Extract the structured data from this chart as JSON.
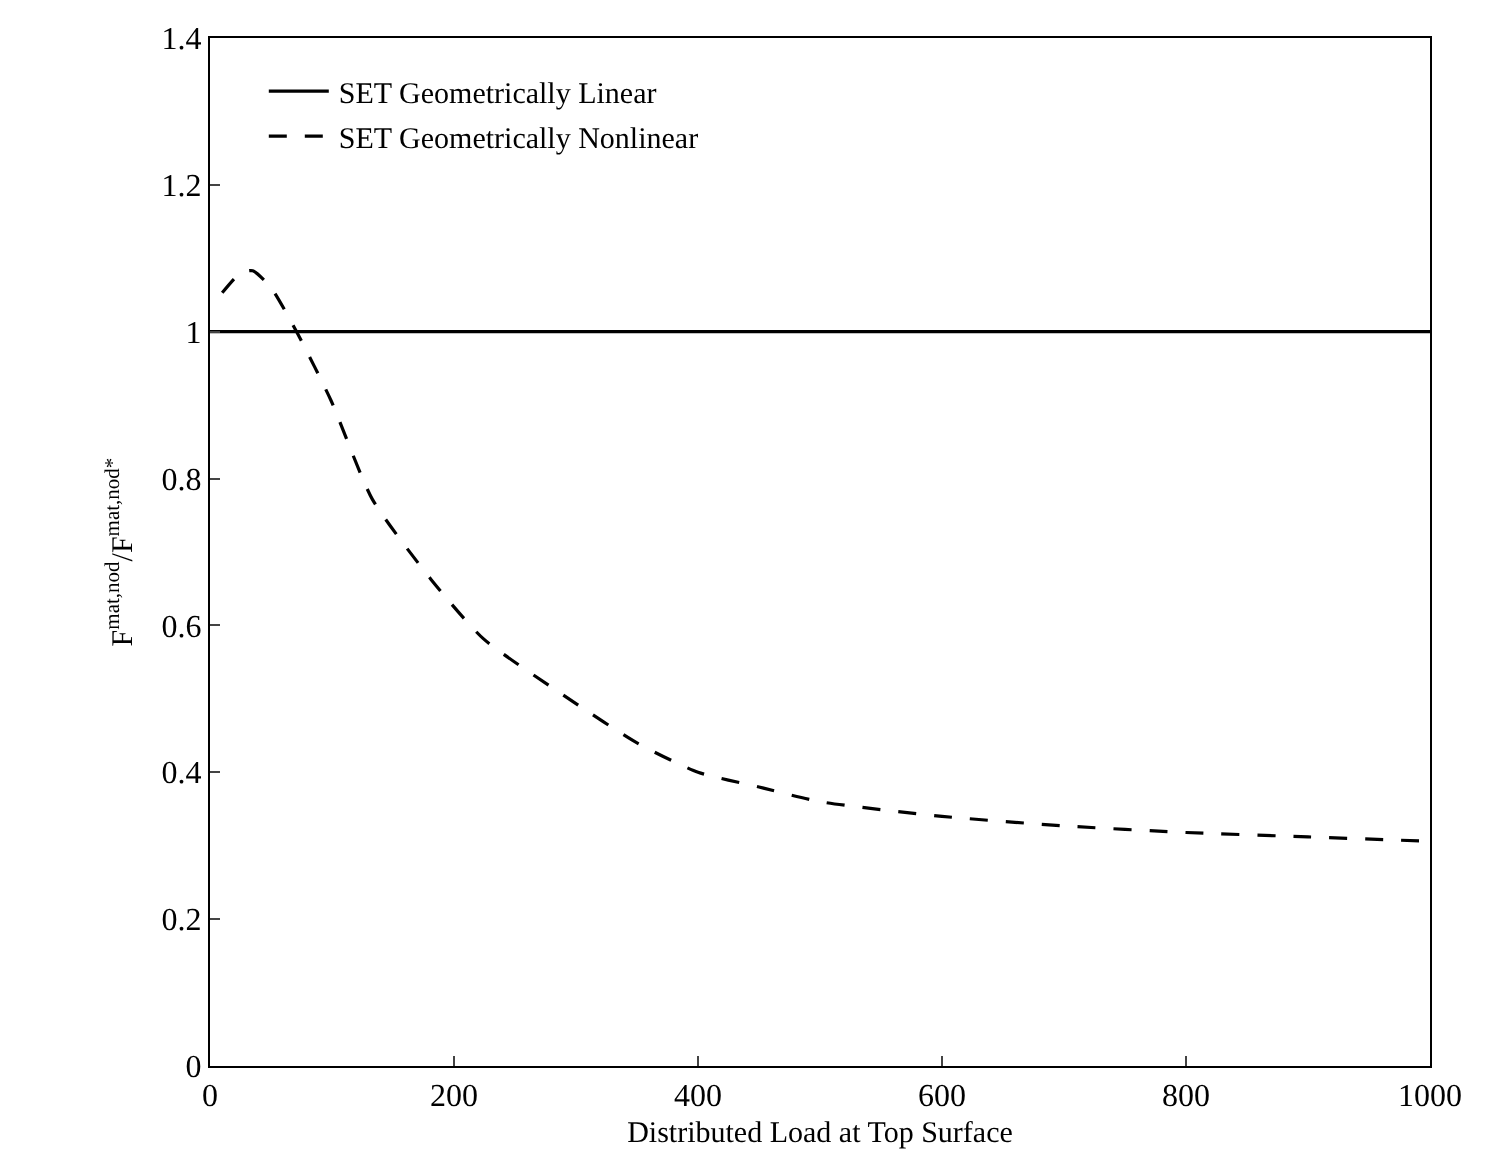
{
  "chart_data": {
    "type": "line",
    "xlabel": "Distributed Load at Top Surface",
    "ylabel": "F$^{mat,nod}$/F$^{mat,nod*}$",
    "xlim": [
      0,
      1000
    ],
    "xticks": [
      0,
      200,
      400,
      600,
      800,
      1000
    ],
    "ylim": [
      0,
      1.4
    ],
    "yticks": [
      0,
      0.2,
      0.4,
      0.6,
      0.8,
      1,
      1.2,
      1.4
    ],
    "legend": "top left",
    "marker": "none",
    "series": [
      {
        "name": "SET Geometrically Linear",
        "color": "#000000",
        "line_style": "solid",
        "x": [
          0,
          1000
        ],
        "values": [
          1,
          1
        ]
      },
      {
        "name": "SET Geometrically Nonlinear",
        "color": "#000000",
        "line_style": "dashed",
        "x": [
          10,
          25,
          35,
          50,
          71,
          99,
          133,
          181,
          224,
          296,
          350,
          400,
          450,
          500,
          600,
          700,
          800,
          900,
          1000
        ],
        "values": [
          1.053,
          1.08,
          1.083,
          1.06,
          1.0,
          0.907,
          0.772,
          0.663,
          0.582,
          0.498,
          0.44,
          0.4,
          0.38,
          0.36,
          0.34,
          0.327,
          0.318,
          0.312,
          0.306
        ]
      }
    ]
  }
}
